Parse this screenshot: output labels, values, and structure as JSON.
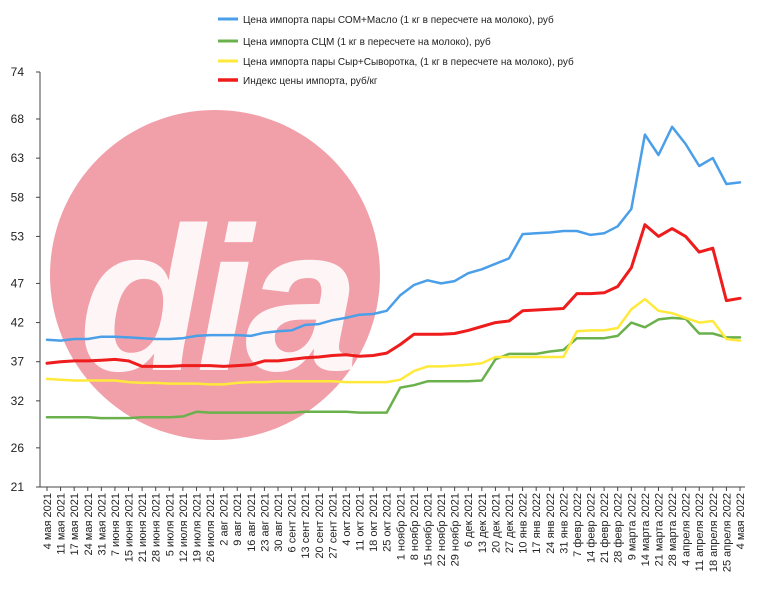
{
  "chart_data": {
    "type": "line",
    "title": "",
    "xlabel": "",
    "ylabel": "",
    "ylim": [
      21,
      74
    ],
    "yticks": [
      "21",
      "26",
      "32",
      "37",
      "42",
      "47",
      "53",
      "58",
      "63",
      "68",
      "74"
    ],
    "x": [
      "4 мая 2021",
      "11 мая 2021",
      "17 мая 2021",
      "24 мая 2021",
      "31 мая 2021",
      "7 июня 2021",
      "15 июня 2021",
      "21 июня 2021",
      "28 июня 2021",
      "5 июля 2021",
      "12 июля 2021",
      "19 июля 2021",
      "26 июля 2021",
      "2 авг 2021",
      "9 авг 2021",
      "16 авг 2021",
      "23 авг 2021",
      "30 авг 2021",
      "6 сент 2021",
      "13 сент 2021",
      "20 сент 2021",
      "27 сент 2021",
      "4 окт 2021",
      "11 окт 2021",
      "18 окт 2021",
      "25 окт 2021",
      "1 ноябр 2021",
      "8 ноябр 2021",
      "15 ноябр 2021",
      "22 ноябр 2021",
      "29 ноябр 2021",
      "6 дек 2021",
      "13 дек 2021",
      "20 дек 2021",
      "27 дек 2021",
      "10 янв 2022",
      "17 янв 2022",
      "24 янв 2022",
      "31 янв 2022",
      "7 февр 2022",
      "14 февр 2022",
      "21 февр 2022",
      "28 февр 2022",
      "9 марта 2022",
      "14 марта 2022",
      "21 марта 2022",
      "28 марта 2022",
      "4 апреля 2022",
      "11 апреля 2022",
      "18 апреля 2022",
      "25 апреля 2022",
      "4 мая 2022"
    ],
    "legend_position": "top",
    "series": [
      {
        "name": "Цена  импорта пары СОМ+Масло  (1 кг в пересчете на молоко), руб",
        "color": "#4a9fe8",
        "values": [
          39.8,
          39.7,
          39.9,
          39.9,
          40.2,
          40.2,
          40.1,
          40.0,
          39.9,
          39.9,
          40.0,
          40.3,
          40.4,
          40.4,
          40.4,
          40.3,
          40.7,
          40.9,
          41.0,
          41.7,
          41.8,
          42.3,
          42.6,
          43.0,
          43.1,
          43.5,
          45.5,
          46.8,
          47.4,
          47.0,
          47.3,
          48.3,
          48.8,
          49.5,
          50.2,
          53.3,
          53.4,
          53.5,
          53.7,
          53.7,
          53.2,
          53.4,
          54.3,
          56.5,
          66.0,
          63.4,
          67.0,
          64.8,
          62.0,
          63.0,
          59.7,
          59.9
        ]
      },
      {
        "name": "Цена импорта СЦМ   (1 кг в пересчете на молоко), руб",
        "color": "#6ab04c",
        "values": [
          29.9,
          29.9,
          29.9,
          29.9,
          29.8,
          29.8,
          29.8,
          29.9,
          29.9,
          29.9,
          30.0,
          30.6,
          30.5,
          30.5,
          30.5,
          30.5,
          30.5,
          30.5,
          30.5,
          30.6,
          30.6,
          30.6,
          30.6,
          30.5,
          30.5,
          30.5,
          33.7,
          34.0,
          34.5,
          34.5,
          34.5,
          34.5,
          34.6,
          37.3,
          38.0,
          38.0,
          38.0,
          38.3,
          38.5,
          40.0,
          40.0,
          40.0,
          40.3,
          42.0,
          41.4,
          42.4,
          42.6,
          42.5,
          40.6,
          40.6,
          40.1,
          40.1
        ]
      },
      {
        "name": "Цена импорта пары Сыр+Сыворотка,  (1 кг в пересчете на молоко), руб",
        "color": "#ffe93a",
        "values": [
          34.8,
          34.7,
          34.6,
          34.6,
          34.6,
          34.6,
          34.4,
          34.3,
          34.3,
          34.2,
          34.2,
          34.2,
          34.1,
          34.1,
          34.3,
          34.4,
          34.4,
          34.5,
          34.5,
          34.5,
          34.5,
          34.5,
          34.4,
          34.4,
          34.4,
          34.4,
          34.7,
          35.8,
          36.4,
          36.4,
          36.5,
          36.6,
          36.8,
          37.6,
          37.6,
          37.6,
          37.6,
          37.6,
          37.6,
          40.9,
          41.0,
          41.0,
          41.3,
          43.7,
          45.0,
          43.5,
          43.2,
          42.6,
          42.0,
          42.2,
          39.9,
          39.7
        ]
      },
      {
        "name": "Индекс цены импорта, руб/кг",
        "color": "#ee1c1c",
        "values": [
          36.8,
          37.0,
          37.1,
          37.1,
          37.2,
          37.3,
          37.1,
          36.4,
          36.4,
          36.4,
          36.5,
          36.5,
          36.5,
          36.4,
          36.5,
          36.6,
          37.1,
          37.1,
          37.3,
          37.5,
          37.6,
          37.8,
          37.9,
          37.7,
          37.8,
          38.1,
          39.2,
          40.5,
          40.5,
          40.5,
          40.6,
          41.0,
          41.5,
          42.0,
          42.2,
          43.5,
          43.6,
          43.7,
          43.8,
          45.7,
          45.7,
          45.8,
          46.6,
          49.0,
          54.5,
          53.0,
          54.0,
          53.0,
          51.0,
          51.5,
          44.8,
          45.1
        ]
      }
    ]
  },
  "watermark": {
    "text": "dia",
    "color": "#f09aa4"
  }
}
